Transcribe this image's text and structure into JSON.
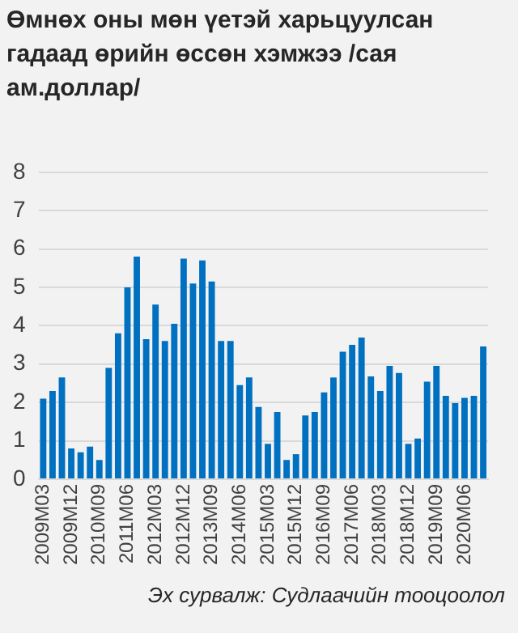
{
  "chart_data": {
    "type": "bar",
    "title": "Өмнөх оны мөн үетэй харьцуулсан гадаад өрийн өссөн хэмжээ /сая ам.доллар/",
    "categories": [
      "2009M03",
      null,
      null,
      "2009M12",
      null,
      null,
      "2010M09",
      null,
      null,
      "2011M06",
      null,
      null,
      "2012M03",
      null,
      null,
      "2012M12",
      null,
      null,
      "2013M09",
      null,
      null,
      "2014M06",
      null,
      null,
      "2015M03",
      null,
      null,
      "2015M12",
      null,
      null,
      "2016M09",
      null,
      null,
      "2017M06",
      null,
      null,
      "2018M03",
      null,
      null,
      "2018M12",
      null,
      null,
      "2019M09",
      null,
      null,
      "2020M06",
      null,
      null
    ],
    "values": [
      2.1,
      2.3,
      2.65,
      0.8,
      0.7,
      0.85,
      0.5,
      2.9,
      3.8,
      5.0,
      5.8,
      3.65,
      4.55,
      3.6,
      4.05,
      5.75,
      5.1,
      5.7,
      5.15,
      3.6,
      3.6,
      2.45,
      2.65,
      1.88,
      0.92,
      1.75,
      0.5,
      0.65,
      1.66,
      1.75,
      2.26,
      2.65,
      3.32,
      3.5,
      3.69,
      2.68,
      2.3,
      2.95,
      2.77,
      0.92,
      1.06,
      2.54,
      2.95,
      2.17,
      1.98,
      2.12,
      2.17,
      3.46
    ],
    "color": "#0070c0",
    "ylim": [
      0,
      8
    ],
    "yticks": [
      0,
      1,
      2,
      3,
      4,
      5,
      6,
      7,
      8
    ],
    "grid": "y",
    "annotations": [
      "Эх сурвалж: Судлаачийн тооцоолол"
    ]
  }
}
